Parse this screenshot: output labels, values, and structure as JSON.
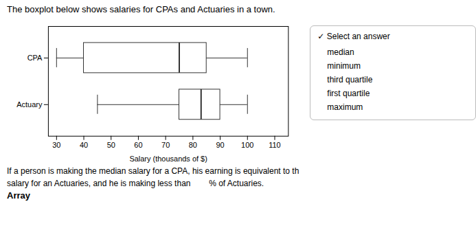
{
  "chart_data": {
    "type": "boxplot",
    "title": "The boxplot below shows salaries for CPAs and Actuaries in a town.",
    "xlabel": "Salary (thousands of $)",
    "categories": [
      "CPA",
      "Actuary"
    ],
    "whisker_low": [
      30,
      45
    ],
    "q1": [
      40,
      75
    ],
    "median": [
      75,
      83
    ],
    "q3": [
      85,
      90
    ],
    "whisker_high": [
      100,
      100
    ],
    "xlim": [
      27,
      115
    ],
    "xticks": [
      30,
      40,
      50,
      60,
      70,
      80,
      90,
      100,
      110
    ],
    "color": "#333333",
    "grid": false,
    "annotations": [
      "If a person is making the median salary for a CPA, his earning is equivalent to th",
      "salary for an Actuaries, and he is making less than        % of Actuaries.",
      "Array"
    ],
    "dropdown": {
      "label": "✓ Select an answer",
      "options": [
        "median",
        "minimum",
        "third quartile",
        "first quartile",
        "maximum"
      ]
    }
  }
}
